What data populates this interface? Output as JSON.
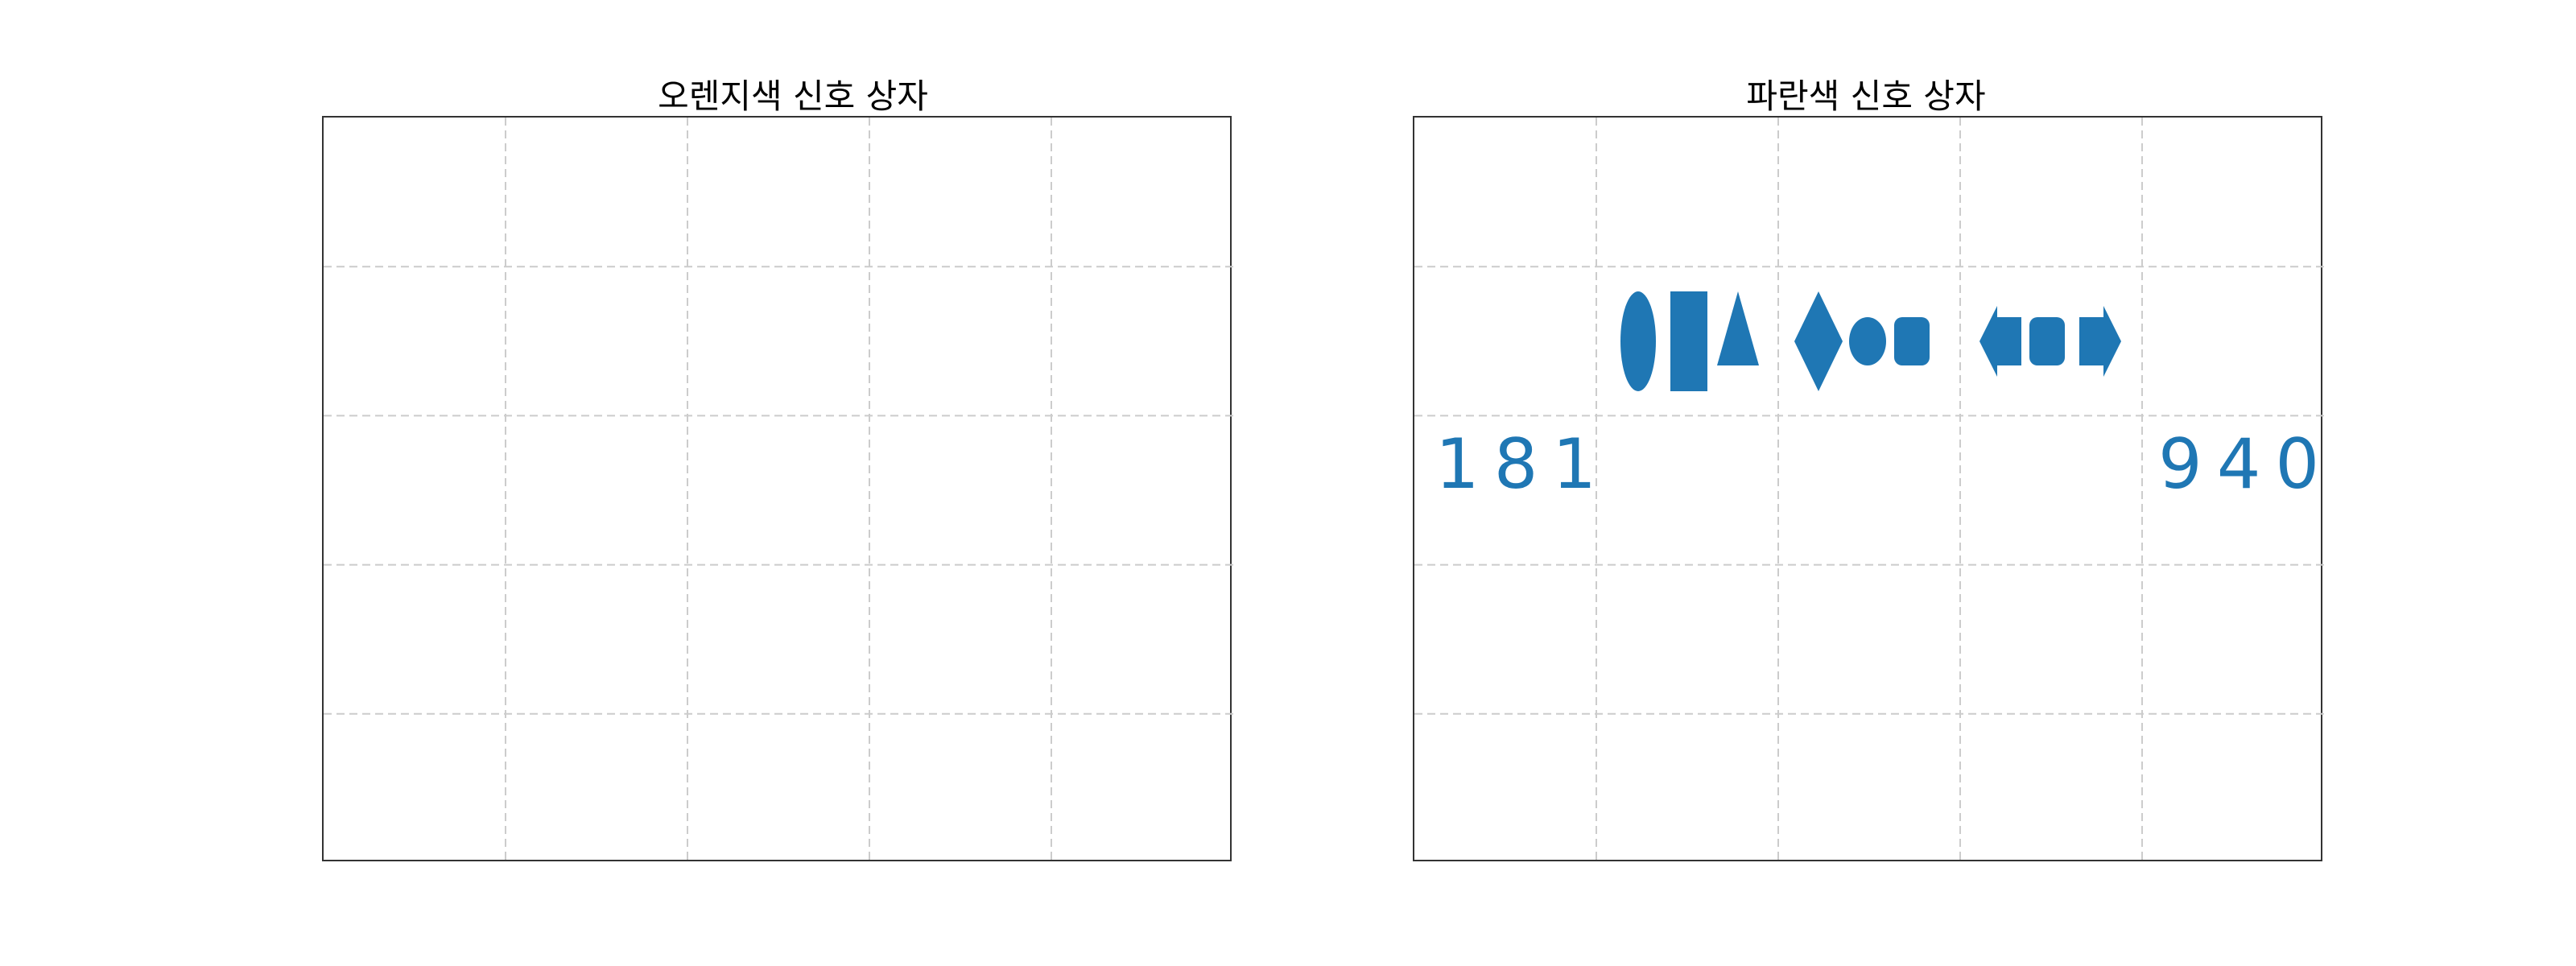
{
  "panels": [
    {
      "title": "오렌지색 신호 상자",
      "color": "#ff7f0e",
      "signals": []
    },
    {
      "title": "파란색 신호 상자",
      "color": "#1f77b4",
      "signals": [
        {
          "left_number": "181",
          "shapes": [
            "ellipse",
            "rectangle",
            "triangle",
            "diamond",
            "circle",
            "rounded-square",
            "left-arrow",
            "rounded-square",
            "right-arrow"
          ],
          "right_number": "940"
        }
      ]
    }
  ]
}
